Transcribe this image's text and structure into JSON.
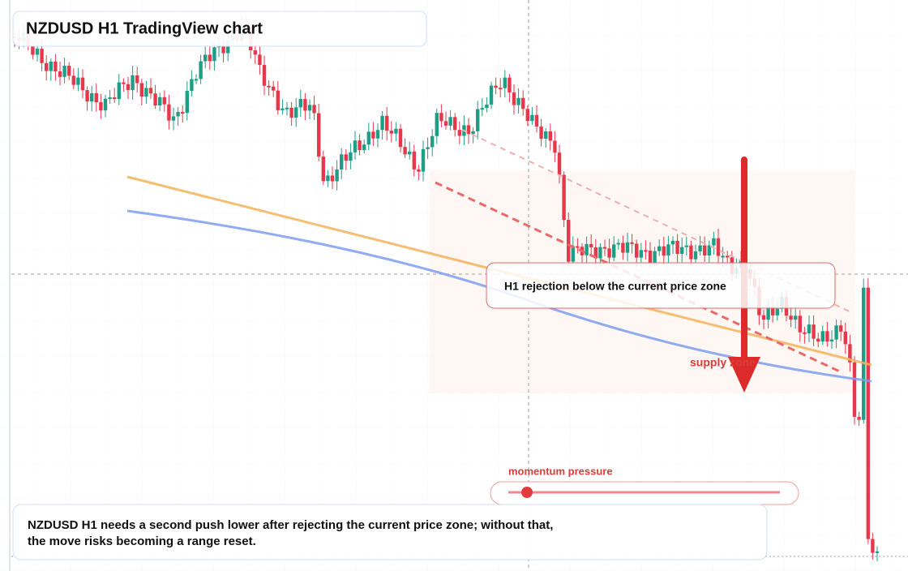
{
  "header": {
    "title": "NZDUSD H1 TradingView chart"
  },
  "annotations": {
    "rejection": "H1 rejection below the current price zone",
    "zone": "supply zone",
    "momentum": "momentum pressure"
  },
  "caption": {
    "lines": [
      "NZDUSD H1 needs a second push lower after rejecting the current price zone; without that,",
      "the move risks becoming a range reset."
    ]
  }
}
